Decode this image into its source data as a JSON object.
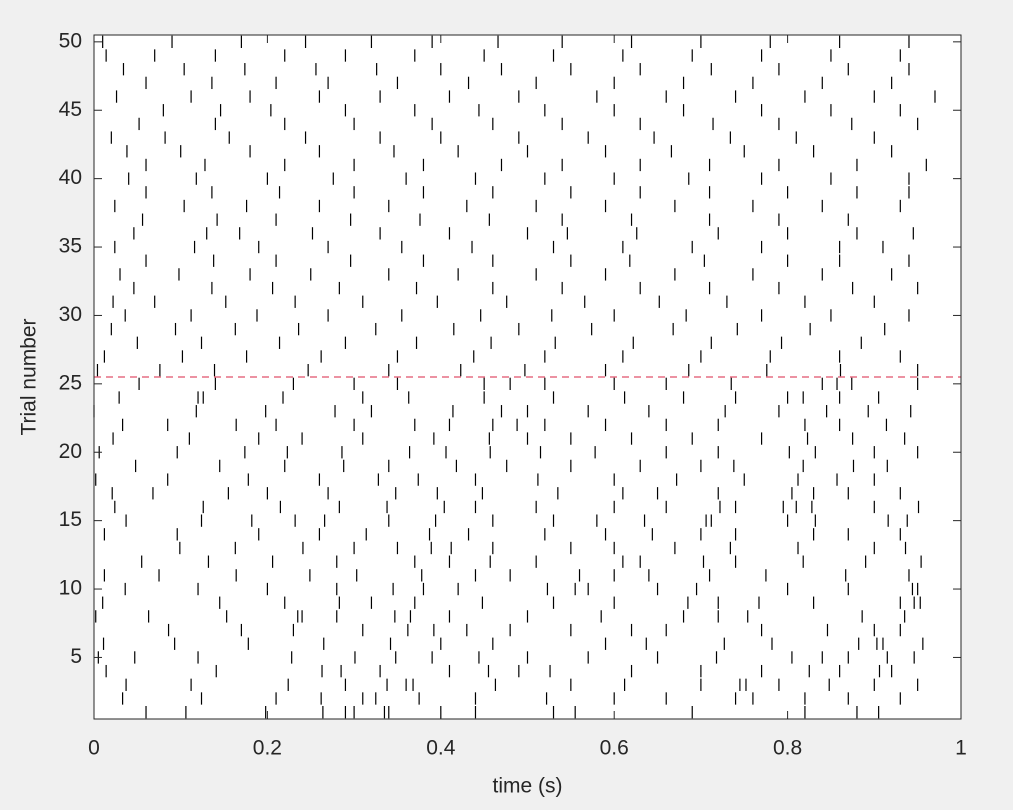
{
  "chart_data": {
    "type": "raster",
    "xlabel": "time (s)",
    "ylabel": "Trial number",
    "xlim": [
      0,
      1
    ],
    "ylim": [
      0.5,
      50.5
    ],
    "xticks": [
      0,
      0.2,
      0.4,
      0.6,
      0.8,
      1
    ],
    "yticks": [
      5,
      10,
      15,
      20,
      25,
      30,
      35,
      40,
      45,
      50
    ],
    "color": "#000000",
    "hlines": [
      {
        "value": 25.5,
        "color": "#e0506a",
        "style": "dashed"
      }
    ],
    "rows": [
      {
        "trial": 1,
        "times": [
          0.06,
          0.106,
          0.198,
          0.264,
          0.29,
          0.3,
          0.335,
          0.34,
          0.4,
          0.44,
          0.53,
          0.555,
          0.69,
          0.82,
          0.88,
          0.905
        ]
      },
      {
        "trial": 2,
        "times": [
          0.033,
          0.124,
          0.21,
          0.262,
          0.31,
          0.325,
          0.375,
          0.44,
          0.522,
          0.6,
          0.66,
          0.74,
          0.76,
          0.82,
          0.87,
          0.93
        ]
      },
      {
        "trial": 3,
        "times": [
          0.037,
          0.112,
          0.224,
          0.29,
          0.338,
          0.36,
          0.368,
          0.463,
          0.55,
          0.612,
          0.7,
          0.745,
          0.752,
          0.79,
          0.848,
          0.9,
          0.95
        ]
      },
      {
        "trial": 4,
        "times": [
          0.014,
          0.141,
          0.263,
          0.285,
          0.33,
          0.41,
          0.455,
          0.49,
          0.526,
          0.62,
          0.7,
          0.77,
          0.825,
          0.86,
          0.906,
          0.92
        ]
      },
      {
        "trial": 5,
        "times": [
          0.005,
          0.047,
          0.12,
          0.228,
          0.301,
          0.348,
          0.39,
          0.444,
          0.5,
          0.57,
          0.65,
          0.718,
          0.805,
          0.84,
          0.87,
          0.915,
          0.946
        ]
      },
      {
        "trial": 6,
        "times": [
          0.011,
          0.093,
          0.178,
          0.265,
          0.342,
          0.4,
          0.46,
          0.59,
          0.637,
          0.727,
          0.782,
          0.882,
          0.903,
          0.91,
          0.956
        ]
      },
      {
        "trial": 7,
        "times": [
          0.086,
          0.17,
          0.23,
          0.31,
          0.362,
          0.392,
          0.43,
          0.48,
          0.55,
          0.62,
          0.66,
          0.77,
          0.846,
          0.9,
          0.93
        ]
      },
      {
        "trial": 8,
        "times": [
          0.002,
          0.063,
          0.153,
          0.24,
          0.235,
          0.28,
          0.347,
          0.365,
          0.41,
          0.5,
          0.585,
          0.68,
          0.72,
          0.754,
          0.886,
          0.935
        ]
      },
      {
        "trial": 9,
        "times": [
          0.01,
          0.145,
          0.22,
          0.283,
          0.32,
          0.37,
          0.448,
          0.53,
          0.6,
          0.685,
          0.72,
          0.767,
          0.83,
          0.93,
          0.946,
          0.953
        ]
      },
      {
        "trial": 10,
        "times": [
          0.036,
          0.12,
          0.2,
          0.28,
          0.345,
          0.38,
          0.42,
          0.523,
          0.555,
          0.57,
          0.65,
          0.695,
          0.8,
          0.87,
          0.944,
          0.95
        ]
      },
      {
        "trial": 11,
        "times": [
          0.012,
          0.075,
          0.164,
          0.249,
          0.303,
          0.378,
          0.44,
          0.48,
          0.56,
          0.6,
          0.64,
          0.71,
          0.775,
          0.867,
          0.94
        ]
      },
      {
        "trial": 12,
        "times": [
          0.055,
          0.132,
          0.206,
          0.28,
          0.37,
          0.41,
          0.457,
          0.51,
          0.61,
          0.63,
          0.703,
          0.74,
          0.818,
          0.89,
          0.954
        ]
      },
      {
        "trial": 13,
        "times": [
          0.099,
          0.163,
          0.241,
          0.3,
          0.35,
          0.389,
          0.412,
          0.46,
          0.55,
          0.6,
          0.67,
          0.734,
          0.812,
          0.9,
          0.936
        ]
      },
      {
        "trial": 14,
        "times": [
          0.012,
          0.096,
          0.19,
          0.26,
          0.314,
          0.387,
          0.432,
          0.52,
          0.59,
          0.644,
          0.7,
          0.74,
          0.83,
          0.87,
          0.93
        ]
      },
      {
        "trial": 15,
        "times": [
          0.037,
          0.124,
          0.182,
          0.232,
          0.266,
          0.34,
          0.394,
          0.46,
          0.53,
          0.58,
          0.635,
          0.706,
          0.712,
          0.8,
          0.832,
          0.916,
          0.938
        ]
      },
      {
        "trial": 16,
        "times": [
          0.024,
          0.126,
          0.215,
          0.283,
          0.338,
          0.404,
          0.44,
          0.51,
          0.6,
          0.66,
          0.722,
          0.74,
          0.795,
          0.81,
          0.828,
          0.9,
          0.951
        ]
      },
      {
        "trial": 17,
        "times": [
          0.021,
          0.068,
          0.155,
          0.2,
          0.27,
          0.348,
          0.396,
          0.448,
          0.535,
          0.61,
          0.65,
          0.72,
          0.805,
          0.83,
          0.87,
          0.93
        ]
      },
      {
        "trial": 18,
        "times": [
          0.002,
          0.085,
          0.178,
          0.26,
          0.328,
          0.374,
          0.44,
          0.512,
          0.6,
          0.672,
          0.75,
          0.812,
          0.857,
          0.9
        ]
      },
      {
        "trial": 19,
        "times": [
          0.048,
          0.145,
          0.22,
          0.288,
          0.34,
          0.418,
          0.476,
          0.55,
          0.63,
          0.7,
          0.738,
          0.818,
          0.876,
          0.915
        ]
      },
      {
        "trial": 20,
        "times": [
          0.006,
          0.096,
          0.174,
          0.223,
          0.286,
          0.364,
          0.406,
          0.457,
          0.515,
          0.578,
          0.66,
          0.72,
          0.802,
          0.832,
          0.9,
          0.95
        ]
      },
      {
        "trial": 21,
        "times": [
          0.022,
          0.11,
          0.19,
          0.24,
          0.31,
          0.392,
          0.456,
          0.5,
          0.55,
          0.62,
          0.69,
          0.77,
          0.823,
          0.875,
          0.935
        ]
      },
      {
        "trial": 22,
        "times": [
          0.033,
          0.085,
          0.164,
          0.21,
          0.3,
          0.37,
          0.41,
          0.46,
          0.488,
          0.52,
          0.59,
          0.66,
          0.72,
          0.82,
          0.86,
          0.914
        ]
      },
      {
        "trial": 23,
        "times": [
          0.0,
          0.118,
          0.198,
          0.278,
          0.32,
          0.414,
          0.47,
          0.5,
          0.57,
          0.64,
          0.728,
          0.79,
          0.845,
          0.893,
          0.942
        ]
      },
      {
        "trial": 24,
        "times": [
          0.029,
          0.12,
          0.126,
          0.218,
          0.31,
          0.363,
          0.45,
          0.53,
          0.612,
          0.68,
          0.74,
          0.8,
          0.818,
          0.86,
          0.905
        ]
      },
      {
        "trial": 25,
        "times": [
          0.052,
          0.14,
          0.23,
          0.3,
          0.35,
          0.45,
          0.48,
          0.52,
          0.6,
          0.66,
          0.735,
          0.84,
          0.857,
          0.874,
          0.95
        ]
      },
      {
        "trial": 26,
        "times": [
          0.004,
          0.076,
          0.139,
          0.247,
          0.34,
          0.423,
          0.497,
          0.59,
          0.686,
          0.776,
          0.861,
          0.95
        ]
      },
      {
        "trial": 27,
        "times": [
          0.012,
          0.102,
          0.176,
          0.262,
          0.35,
          0.438,
          0.52,
          0.61,
          0.7,
          0.78,
          0.86,
          0.93
        ]
      },
      {
        "trial": 28,
        "times": [
          0.05,
          0.124,
          0.214,
          0.29,
          0.372,
          0.458,
          0.532,
          0.622,
          0.712,
          0.793,
          0.885
        ]
      },
      {
        "trial": 29,
        "times": [
          0.02,
          0.094,
          0.163,
          0.236,
          0.325,
          0.415,
          0.49,
          0.574,
          0.668,
          0.742,
          0.826,
          0.912
        ]
      },
      {
        "trial": 30,
        "times": [
          0.036,
          0.112,
          0.188,
          0.27,
          0.355,
          0.446,
          0.528,
          0.6,
          0.683,
          0.77,
          0.85,
          0.94
        ]
      },
      {
        "trial": 31,
        "times": [
          0.022,
          0.07,
          0.152,
          0.232,
          0.31,
          0.396,
          0.476,
          0.566,
          0.652,
          0.73,
          0.82,
          0.9
        ]
      },
      {
        "trial": 32,
        "times": [
          0.046,
          0.136,
          0.206,
          0.283,
          0.372,
          0.46,
          0.54,
          0.63,
          0.71,
          0.79,
          0.875,
          0.95
        ]
      },
      {
        "trial": 33,
        "times": [
          0.03,
          0.098,
          0.18,
          0.25,
          0.34,
          0.42,
          0.51,
          0.59,
          0.67,
          0.76,
          0.84,
          0.92
        ]
      },
      {
        "trial": 34,
        "times": [
          0.06,
          0.138,
          0.21,
          0.296,
          0.38,
          0.46,
          0.55,
          0.618,
          0.704,
          0.8,
          0.86,
          0.94
        ]
      },
      {
        "trial": 35,
        "times": [
          0.024,
          0.116,
          0.19,
          0.27,
          0.355,
          0.436,
          0.53,
          0.61,
          0.69,
          0.77,
          0.86,
          0.91
        ]
      },
      {
        "trial": 36,
        "times": [
          0.046,
          0.13,
          0.168,
          0.252,
          0.33,
          0.41,
          0.5,
          0.546,
          0.626,
          0.72,
          0.8,
          0.88,
          0.945
        ]
      },
      {
        "trial": 37,
        "times": [
          0.056,
          0.142,
          0.21,
          0.296,
          0.376,
          0.456,
          0.54,
          0.62,
          0.71,
          0.79,
          0.87
        ]
      },
      {
        "trial": 38,
        "times": [
          0.024,
          0.104,
          0.176,
          0.26,
          0.34,
          0.43,
          0.51,
          0.59,
          0.67,
          0.76,
          0.84,
          0.93
        ]
      },
      {
        "trial": 39,
        "times": [
          0.06,
          0.136,
          0.214,
          0.3,
          0.38,
          0.46,
          0.55,
          0.63,
          0.71,
          0.8,
          0.88,
          0.94
        ]
      },
      {
        "trial": 40,
        "times": [
          0.04,
          0.118,
          0.2,
          0.276,
          0.36,
          0.44,
          0.52,
          0.6,
          0.686,
          0.77,
          0.85,
          0.94
        ]
      },
      {
        "trial": 41,
        "times": [
          0.06,
          0.128,
          0.22,
          0.3,
          0.38,
          0.47,
          0.54,
          0.63,
          0.71,
          0.79,
          0.88,
          0.96
        ]
      },
      {
        "trial": 42,
        "times": [
          0.038,
          0.1,
          0.18,
          0.26,
          0.346,
          0.42,
          0.5,
          0.59,
          0.666,
          0.75,
          0.83,
          0.92
        ]
      },
      {
        "trial": 43,
        "times": [
          0.02,
          0.082,
          0.156,
          0.244,
          0.33,
          0.4,
          0.49,
          0.57,
          0.646,
          0.734,
          0.81,
          0.9
        ]
      },
      {
        "trial": 44,
        "times": [
          0.052,
          0.14,
          0.22,
          0.3,
          0.39,
          0.46,
          0.54,
          0.63,
          0.714,
          0.79,
          0.874,
          0.95
        ]
      },
      {
        "trial": 45,
        "times": [
          0.08,
          0.146,
          0.204,
          0.29,
          0.37,
          0.444,
          0.52,
          0.6,
          0.68,
          0.77,
          0.85,
          0.93
        ]
      },
      {
        "trial": 46,
        "times": [
          0.026,
          0.112,
          0.18,
          0.26,
          0.33,
          0.41,
          0.49,
          0.58,
          0.66,
          0.74,
          0.82,
          0.9,
          0.97
        ]
      },
      {
        "trial": 47,
        "times": [
          0.06,
          0.136,
          0.21,
          0.27,
          0.35,
          0.432,
          0.51,
          0.6,
          0.68,
          0.76,
          0.84,
          0.92
        ]
      },
      {
        "trial": 48,
        "times": [
          0.034,
          0.104,
          0.174,
          0.256,
          0.326,
          0.4,
          0.47,
          0.55,
          0.63,
          0.712,
          0.79,
          0.87,
          0.94
        ]
      },
      {
        "trial": 49,
        "times": [
          0.014,
          0.07,
          0.14,
          0.22,
          0.29,
          0.37,
          0.45,
          0.53,
          0.61,
          0.69,
          0.77,
          0.85,
          0.93
        ]
      },
      {
        "trial": 50,
        "times": [
          0.01,
          0.09,
          0.17,
          0.244,
          0.32,
          0.39,
          0.466,
          0.54,
          0.62,
          0.7,
          0.78,
          0.86,
          0.94
        ]
      }
    ]
  }
}
